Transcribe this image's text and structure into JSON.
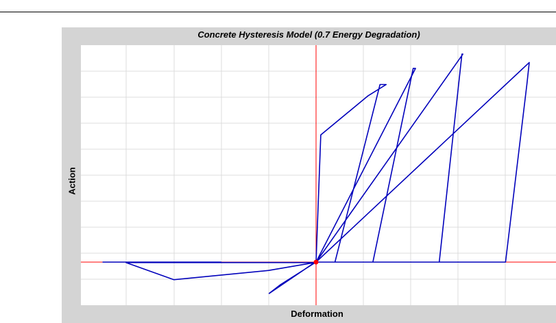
{
  "chart_data": {
    "type": "line",
    "title": "Concrete Hysteresis Model (0.7 Energy Degradation)",
    "xlabel": "Deformation",
    "ylabel": "Action",
    "xlim": [
      -45,
      50
    ],
    "ylim": [
      -9,
      44.5
    ],
    "grid": true,
    "origin_marker_color": "#ff0000",
    "axis_color": "#ff0000",
    "grid_color": "#dcdcdc",
    "series": [
      {
        "color": "#0000bb",
        "x": [
          0,
          1,
          11,
          14.8,
          13.5,
          4,
          0,
          21,
          20.5,
          12,
          0,
          31,
          30.8,
          26,
          0,
          45,
          45,
          44.5,
          40,
          40,
          34,
          24,
          20,
          14.3,
          12,
          12.1,
          4.1,
          0,
          -7.5,
          -9.9,
          -0.3,
          -10,
          -30,
          -40.1,
          -0.3,
          -40,
          -45,
          -20
        ],
        "y": [
          0,
          26,
          34,
          36.3,
          36.3,
          0,
          0,
          39.6,
          39.6,
          0,
          0,
          42.5,
          42.5,
          0,
          0,
          40.8,
          40.8,
          36.3,
          0,
          0,
          0,
          0,
          0,
          0,
          0,
          0,
          0,
          0,
          -4.6,
          -6.4,
          -0.1,
          -1.7,
          -3.6,
          -0.1,
          -0.1,
          0,
          0,
          0
        ]
      }
    ]
  }
}
